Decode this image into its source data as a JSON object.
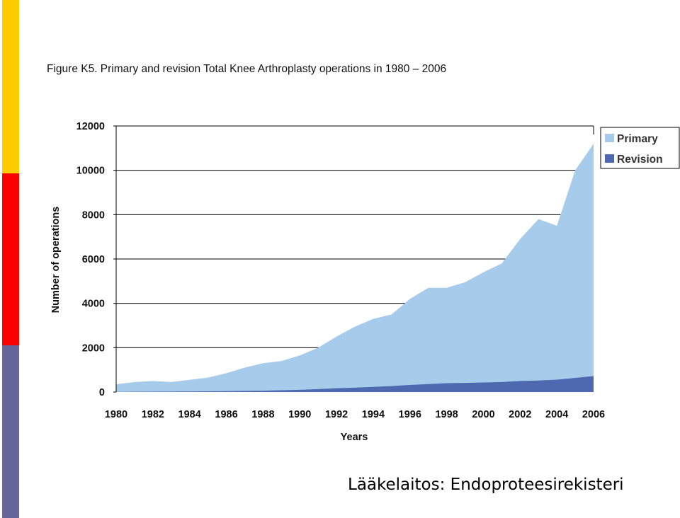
{
  "colors": {
    "sidebar": [
      "#ffcc00",
      "#ff0000",
      "#666699"
    ],
    "primary": "#a6cbeb",
    "revision": "#4f69b0",
    "grid": "#000000"
  },
  "caption": "Lääkelaitos: Endoproteesirekisteri",
  "chart_data": {
    "type": "area",
    "title": "Figure K5. Primary and revision Total Knee Arthroplasty operations in 1980 – 2006",
    "xlabel": "Years",
    "ylabel": "Number of operations",
    "ylim": [
      0,
      12000
    ],
    "yticks": [
      0,
      2000,
      4000,
      6000,
      8000,
      10000,
      12000
    ],
    "xticks": [
      1980,
      1982,
      1984,
      1986,
      1988,
      1990,
      1992,
      1994,
      1996,
      1998,
      2000,
      2002,
      2004,
      2006
    ],
    "grid": "horizontal",
    "legend_position": "top-right",
    "stacked": false,
    "x": [
      1980,
      1981,
      1982,
      1983,
      1984,
      1985,
      1986,
      1987,
      1988,
      1989,
      1990,
      1991,
      1992,
      1993,
      1994,
      1995,
      1996,
      1997,
      1998,
      1999,
      2000,
      2001,
      2002,
      2003,
      2004,
      2005,
      2006
    ],
    "series": [
      {
        "name": "Primary",
        "color": "#a6cbeb",
        "values": [
          350,
          450,
          500,
          450,
          550,
          650,
          850,
          1100,
          1300,
          1400,
          1650,
          2000,
          2500,
          2950,
          3300,
          3500,
          4200,
          4700,
          4700,
          4950,
          5400,
          5800,
          6900,
          7800,
          7500,
          10000,
          11200
        ]
      },
      {
        "name": "Revision",
        "color": "#4f69b0",
        "values": [
          5,
          10,
          15,
          20,
          25,
          30,
          40,
          50,
          60,
          80,
          100,
          130,
          170,
          200,
          230,
          270,
          320,
          360,
          400,
          410,
          430,
          450,
          500,
          520,
          560,
          640,
          720
        ]
      }
    ]
  }
}
